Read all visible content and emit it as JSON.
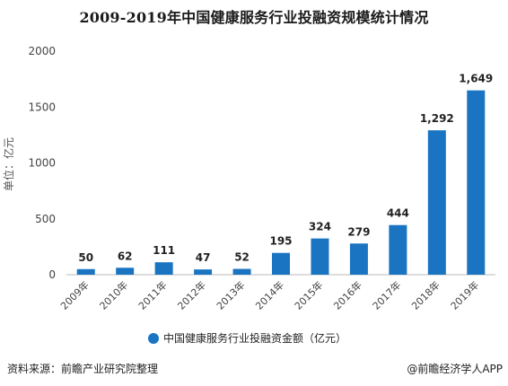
{
  "chart_data": {
    "type": "bar",
    "title": "2009-2019年中国健康服务行业投融资规模统计情况",
    "ylabel": "单位：亿元",
    "xlabel": "",
    "categories": [
      "2009年",
      "2010年",
      "2011年",
      "2012年",
      "2013年",
      "2014年",
      "2015年",
      "2016年",
      "2017年",
      "2018年",
      "2019年"
    ],
    "values": [
      50,
      62,
      111,
      47,
      52,
      195,
      324,
      279,
      444,
      1292,
      1649
    ],
    "value_labels": [
      "50",
      "62",
      "111",
      "47",
      "52",
      "195",
      "324",
      "279",
      "444",
      "1,292",
      "1,649"
    ],
    "yticks": [
      "0",
      "500",
      "1000",
      "1500",
      "2000"
    ],
    "ylim": [
      0,
      2000
    ],
    "legend": {
      "label": "中国健康服务行业投融资金额（亿元）",
      "placement": "bottom"
    },
    "grid": false,
    "bar_color": "#1a74c2"
  },
  "footer": {
    "source": "资料来源：前瞻产业研究院整理",
    "brand": "@前瞻经济学人APP"
  }
}
